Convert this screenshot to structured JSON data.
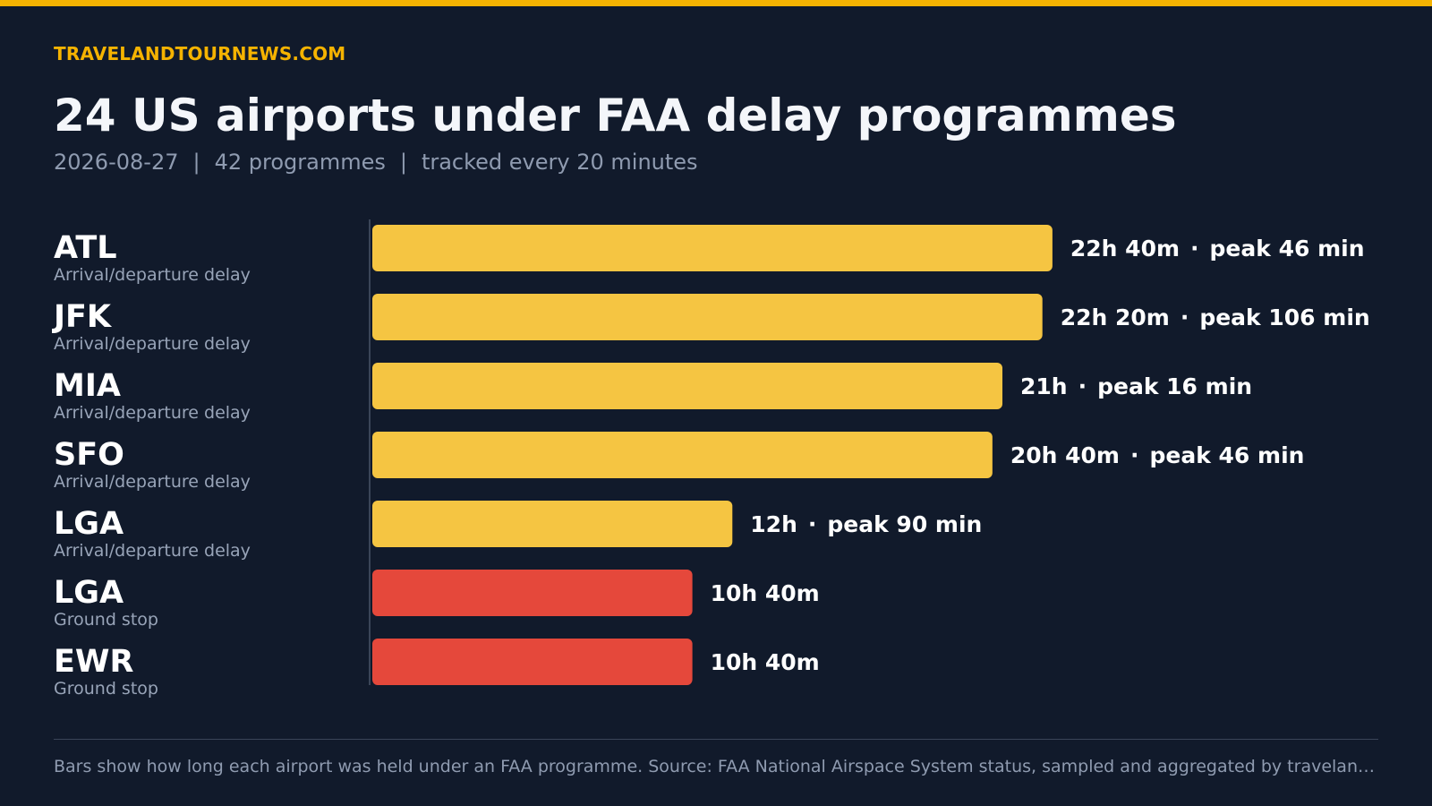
{
  "brand": "TRAVELANDTOURNEWS.COM",
  "title": "24 US airports under FAA delay programmes",
  "subtitle": {
    "date": "2026-08-27",
    "separator": "|",
    "programmes": "42 programmes",
    "frequency": "tracked every 20 minutes"
  },
  "footnote": "Bars show how long each airport was held under an FAA programme. Source: FAA National Airspace System status, sampled and aggregated by travelandtournews.com",
  "colors": {
    "accent": "#f5b301",
    "delay_bar": "#f5c542",
    "ground_stop_bar": "#e5483b",
    "background": "#111a2b"
  },
  "chart_data": {
    "type": "bar",
    "orientation": "horizontal",
    "unit": "hours",
    "xlim": [
      0,
      22.67
    ],
    "rows": [
      {
        "code": "ATL",
        "type": "Arrival/departure delay",
        "hours": 22.667,
        "duration_label": "22h 40m",
        "peak_label": "peak 46 min",
        "category": "delay"
      },
      {
        "code": "JFK",
        "type": "Arrival/departure delay",
        "hours": 22.333,
        "duration_label": "22h 20m",
        "peak_label": "peak 106 min",
        "category": "delay"
      },
      {
        "code": "MIA",
        "type": "Arrival/departure delay",
        "hours": 21.0,
        "duration_label": "21h",
        "peak_label": "peak 16 min",
        "category": "delay"
      },
      {
        "code": "SFO",
        "type": "Arrival/departure delay",
        "hours": 20.667,
        "duration_label": "20h 40m",
        "peak_label": "peak 46 min",
        "category": "delay"
      },
      {
        "code": "LGA",
        "type": "Arrival/departure delay",
        "hours": 12.0,
        "duration_label": "12h",
        "peak_label": "peak 90 min",
        "category": "delay"
      },
      {
        "code": "LGA",
        "type": "Ground stop",
        "hours": 10.667,
        "duration_label": "10h 40m",
        "peak_label": "",
        "category": "ground_stop"
      },
      {
        "code": "EWR",
        "type": "Ground stop",
        "hours": 10.667,
        "duration_label": "10h 40m",
        "peak_label": "",
        "category": "ground_stop"
      }
    ]
  }
}
